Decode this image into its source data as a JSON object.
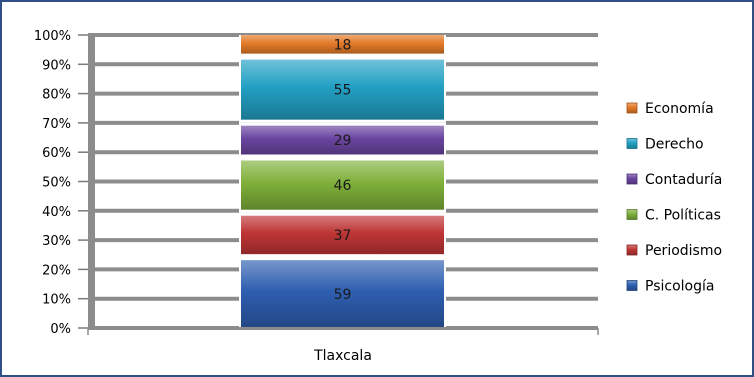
{
  "chart_data": {
    "type": "bar",
    "stacked": "percent",
    "categories": [
      "Tlaxcala"
    ],
    "series": [
      {
        "name": "Psicología",
        "values": [
          59
        ],
        "color": "#2e5fb0"
      },
      {
        "name": "Periodismo",
        "values": [
          37
        ],
        "color": "#bf3535"
      },
      {
        "name": "C. Políticas",
        "values": [
          46
        ],
        "color": "#7fb03a"
      },
      {
        "name": "Contaduría",
        "values": [
          29
        ],
        "color": "#6a45a0"
      },
      {
        "name": "Derecho",
        "values": [
          55
        ],
        "color": "#23a0c4"
      },
      {
        "name": "Economía",
        "values": [
          18
        ],
        "color": "#e47a28"
      }
    ],
    "y_ticks": [
      "0%",
      "10%",
      "20%",
      "30%",
      "40%",
      "50%",
      "60%",
      "70%",
      "80%",
      "90%",
      "100%"
    ],
    "ylim": [
      0,
      100
    ],
    "grid": true,
    "legend": "right"
  }
}
